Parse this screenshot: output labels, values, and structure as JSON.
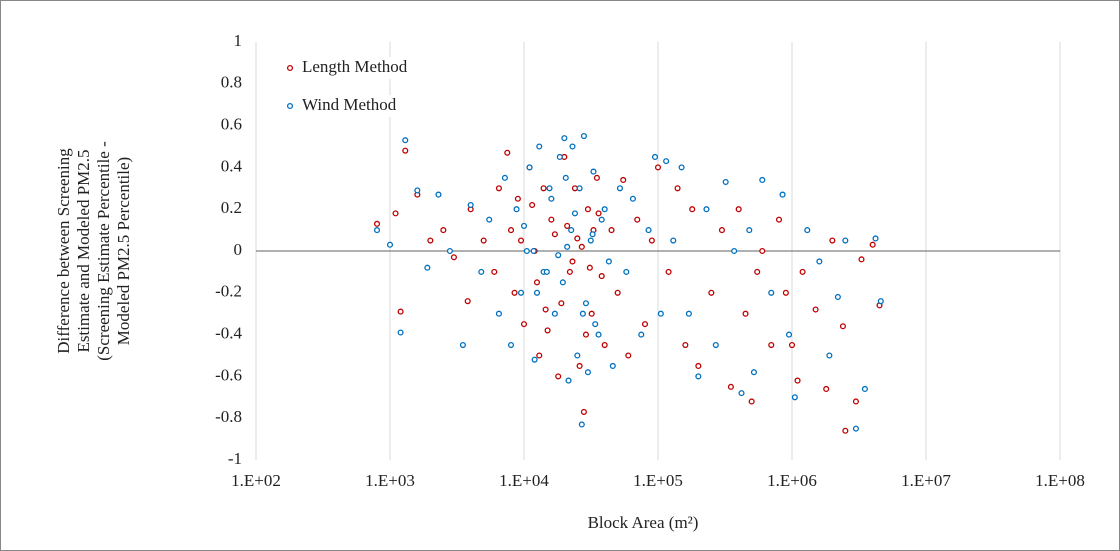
{
  "chart_data": {
    "type": "scatter",
    "x_label": "Block Area (m²)",
    "y_label": [
      "Difference between Screening",
      "Estimate and Modeled PM2.5",
      "(Screening Estimate Percentile -",
      "Modeled PM2.5 Percentile)"
    ],
    "xlim": [
      100,
      100000000
    ],
    "xscale": "log",
    "xticks": [
      {
        "value": 100,
        "label": "1.E+02"
      },
      {
        "value": 1000,
        "label": "1.E+03"
      },
      {
        "value": 10000,
        "label": "1.E+04"
      },
      {
        "value": 100000,
        "label": "1.E+05"
      },
      {
        "value": 1000000,
        "label": "1.E+06"
      },
      {
        "value": 10000000,
        "label": "1.E+07"
      },
      {
        "value": 100000000,
        "label": "1.E+08"
      }
    ],
    "ylim": [
      -1,
      1
    ],
    "yticks": [
      1,
      0.8,
      0.6,
      0.4,
      0.2,
      0,
      -0.2,
      -0.4,
      -0.6,
      -0.8,
      -1
    ],
    "xgrid": true,
    "legend": "upper left",
    "series": [
      {
        "name": "Length Method",
        "color": "#c00000",
        "x": [
          800,
          1100,
          1200,
          1300,
          1600,
          2000,
          2500,
          3000,
          3800,
          4000,
          5000,
          6000,
          6500,
          7500,
          8000,
          8500,
          9000,
          10000,
          11000,
          12000,
          13000,
          14000,
          15000,
          16000,
          18000,
          20000,
          22000,
          24000,
          26000,
          28000,
          30000,
          32000,
          35000,
          40000,
          45000,
          50000,
          55000,
          60000,
          70000,
          80000,
          90000,
          100000,
          120000,
          140000,
          160000,
          180000,
          200000,
          250000,
          300000,
          350000,
          400000,
          450000,
          500000,
          550000,
          600000,
          700000,
          800000,
          900000,
          1000000,
          1100000,
          1200000,
          1500000,
          1800000,
          2000000,
          2400000,
          2500000,
          3000000,
          3300000,
          4000000,
          4500000,
          9500,
          12500,
          17000,
          19000,
          21000,
          23000,
          27000,
          29000,
          33000,
          38000,
          11500,
          14500,
          25000,
          31000,
          36000
        ],
        "values": [
          0.13,
          0.18,
          -0.29,
          0.48,
          0.27,
          0.05,
          0.1,
          -0.03,
          -0.24,
          0.2,
          0.05,
          -0.1,
          0.3,
          0.47,
          0.1,
          -0.2,
          0.25,
          -0.35,
          0.4,
          0.0,
          -0.5,
          0.3,
          -0.38,
          0.15,
          -0.6,
          0.45,
          -0.1,
          0.3,
          -0.55,
          -0.77,
          0.2,
          -0.3,
          0.35,
          -0.45,
          0.1,
          -0.2,
          0.34,
          -0.5,
          0.15,
          -0.35,
          0.05,
          0.4,
          -0.1,
          0.3,
          -0.45,
          0.2,
          -0.55,
          -0.2,
          0.1,
          -0.65,
          0.2,
          -0.3,
          -0.72,
          -0.1,
          0.0,
          -0.45,
          0.15,
          -0.2,
          -0.45,
          -0.62,
          -0.1,
          -0.28,
          -0.66,
          0.05,
          -0.36,
          -0.86,
          -0.72,
          -0.04,
          0.03,
          -0.26,
          0.05,
          -0.15,
          0.08,
          -0.25,
          0.12,
          -0.05,
          0.02,
          -0.4,
          0.1,
          -0.12,
          0.22,
          -0.28,
          0.06,
          -0.08,
          0.18
        ]
      },
      {
        "name": "Wind Method",
        "color": "#0070c0",
        "x": [
          800,
          1000,
          1200,
          1300,
          1600,
          1900,
          2300,
          2800,
          3500,
          4000,
          4800,
          5500,
          6500,
          7200,
          8000,
          8800,
          9500,
          10500,
          11000,
          12000,
          13000,
          14000,
          15500,
          17000,
          18500,
          20000,
          21500,
          23000,
          25000,
          27000,
          28000,
          30000,
          33000,
          36000,
          40000,
          46000,
          52000,
          58000,
          65000,
          75000,
          85000,
          95000,
          105000,
          115000,
          130000,
          150000,
          170000,
          200000,
          230000,
          270000,
          320000,
          370000,
          420000,
          480000,
          520000,
          600000,
          700000,
          850000,
          950000,
          1050000,
          1300000,
          1600000,
          1900000,
          2200000,
          2500000,
          3000000,
          3500000,
          4200000,
          4600000,
          10000,
          12500,
          16000,
          19500,
          22500,
          26000,
          29000,
          31500,
          34000,
          38000,
          43000,
          11800,
          14800,
          24000,
          27500,
          32500,
          21000,
          18000,
          20500
        ],
        "values": [
          0.1,
          0.03,
          -0.39,
          0.53,
          0.29,
          -0.08,
          0.27,
          0.0,
          -0.45,
          0.22,
          -0.1,
          0.15,
          -0.3,
          0.35,
          -0.45,
          0.2,
          -0.2,
          0.0,
          0.4,
          -0.52,
          0.5,
          -0.1,
          0.3,
          -0.3,
          0.45,
          0.54,
          -0.62,
          0.5,
          -0.5,
          -0.83,
          0.55,
          -0.58,
          0.38,
          -0.4,
          0.2,
          -0.55,
          0.3,
          -0.1,
          0.25,
          -0.4,
          0.1,
          0.45,
          -0.3,
          0.43,
          0.05,
          0.4,
          -0.3,
          -0.6,
          0.2,
          -0.45,
          0.33,
          0.0,
          -0.68,
          0.1,
          -0.58,
          0.34,
          -0.2,
          0.27,
          -0.4,
          -0.7,
          0.1,
          -0.05,
          -0.5,
          -0.22,
          0.05,
          -0.85,
          -0.66,
          0.06,
          -0.24,
          0.12,
          -0.2,
          0.25,
          -0.15,
          0.1,
          0.3,
          -0.25,
          0.05,
          -0.35,
          0.15,
          -0.05,
          0.0,
          -0.1,
          0.18,
          -0.3,
          0.08,
          0.02,
          -0.02,
          0.35
        ]
      }
    ]
  }
}
